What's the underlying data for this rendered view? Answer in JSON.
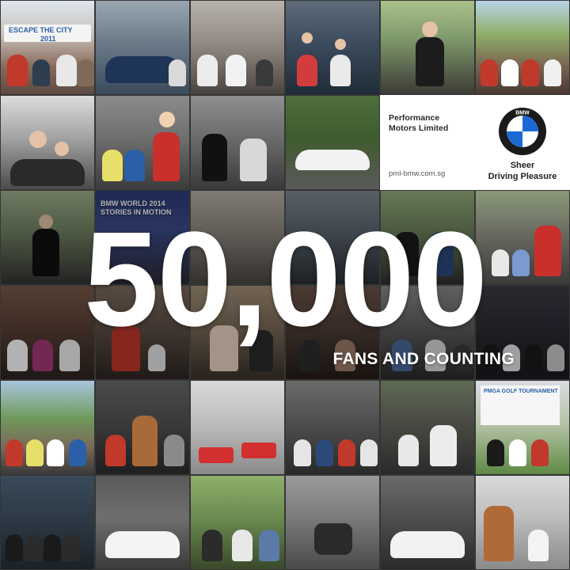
{
  "headline": {
    "count": "50,000",
    "subtitle": "FANS AND COUNTING"
  },
  "brand_panel": {
    "company": "Performance Motors Limited",
    "url": "pml-bmw.com.sg",
    "logo_letters": "BMW",
    "tagline_line1": "Sheer",
    "tagline_line2": "Driving Pleasure"
  },
  "photo_captions": {
    "escape_banner": "ESCAPE THE CITY",
    "escape_year": "2011",
    "bmw_world_line1": "BMW WORLD 2014",
    "bmw_world_line2": "STORIES IN MOTION",
    "golf_banner": "PMGA GOLF TOURNAMENT"
  },
  "colors": {
    "bmw_blue": "#1c69d4",
    "text_white": "#ffffff",
    "panel_white": "#ffffff"
  }
}
